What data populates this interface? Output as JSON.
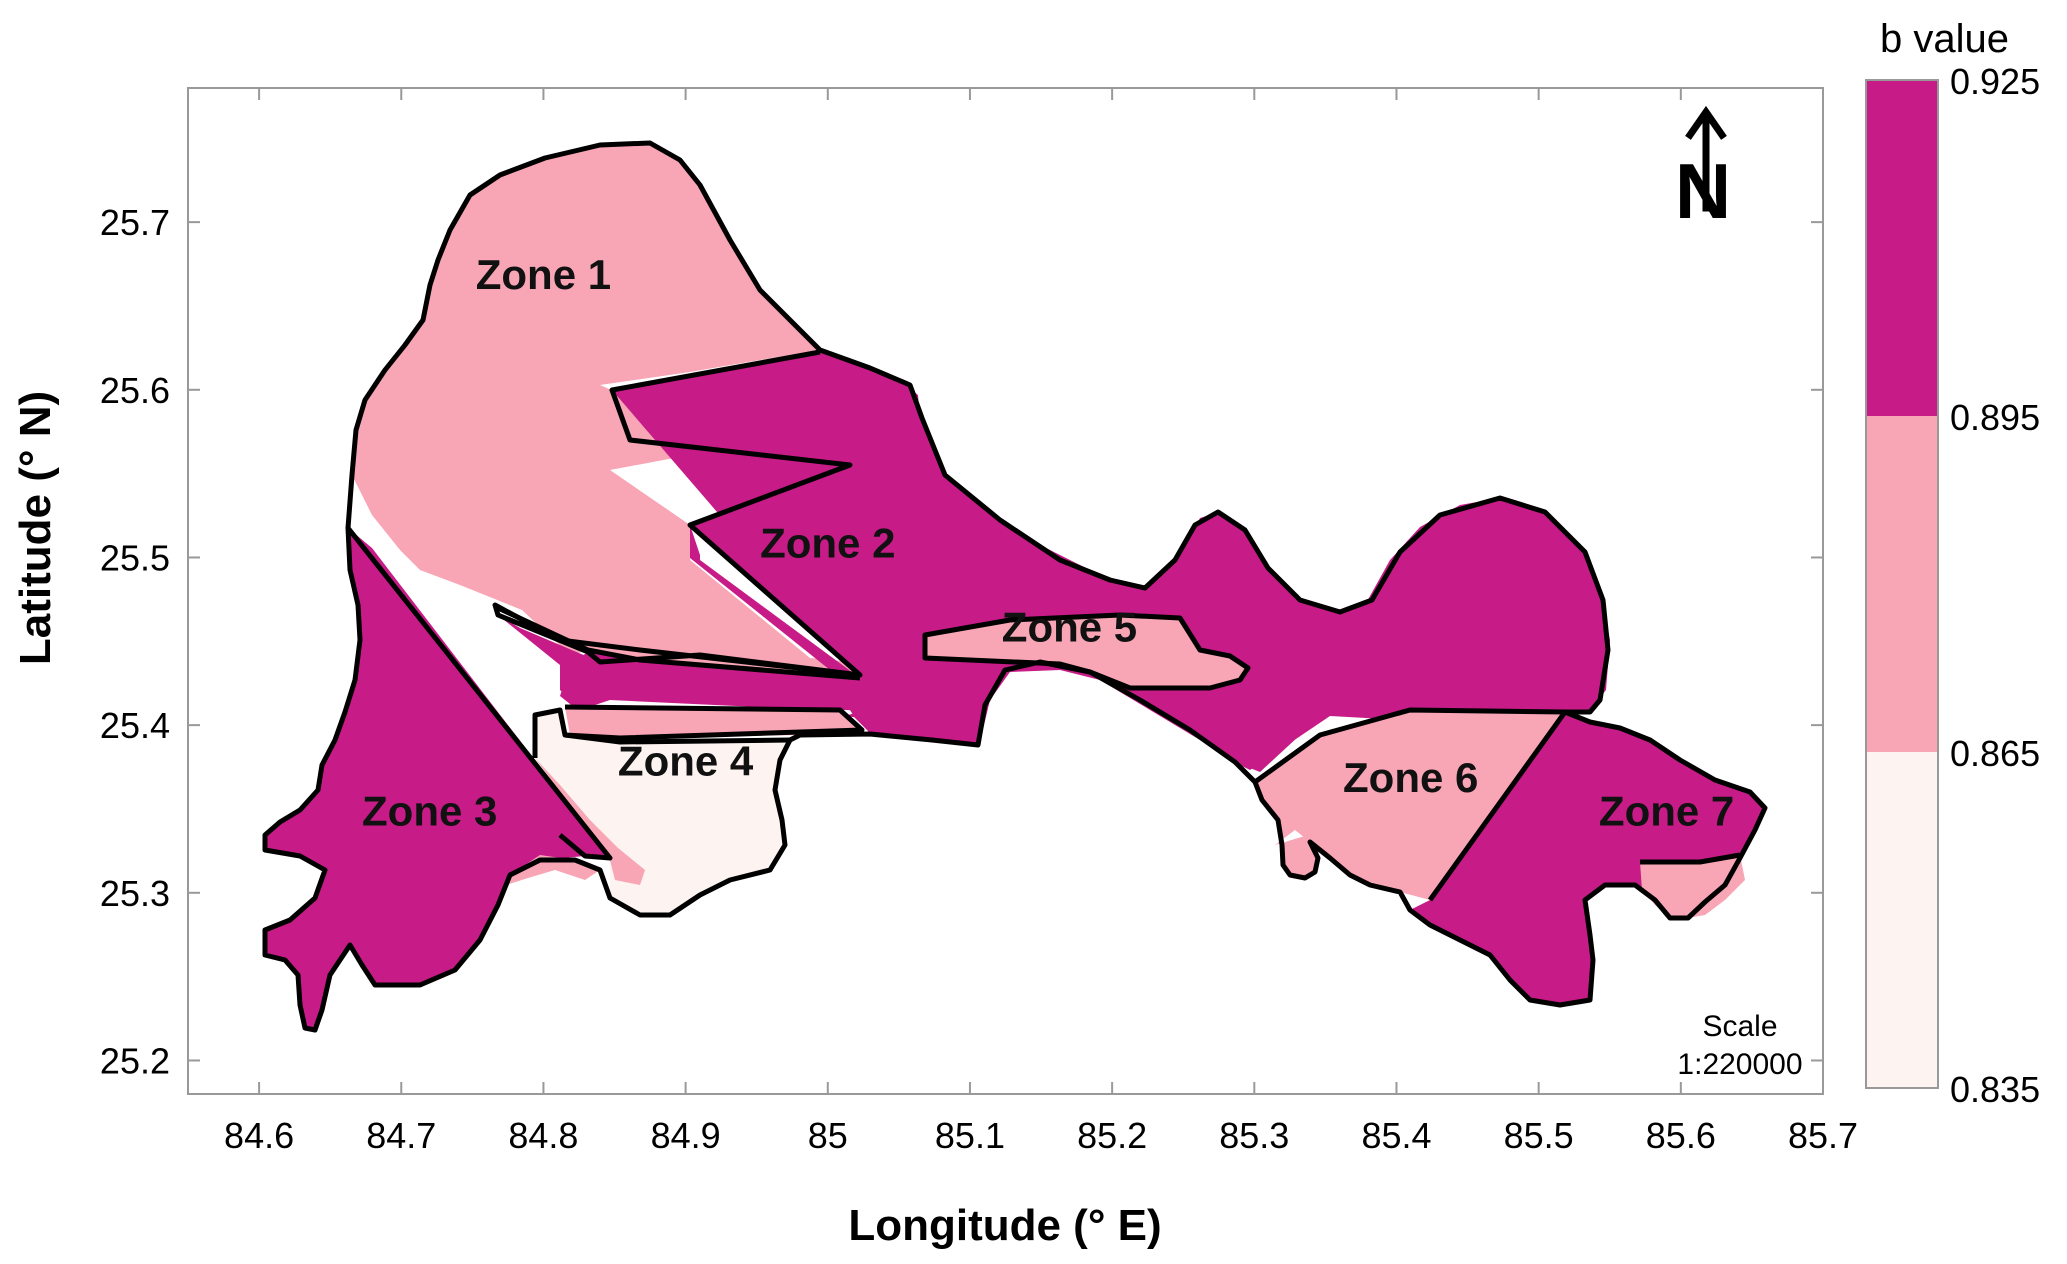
{
  "map": {
    "xlabel": "Longitude (° E)",
    "ylabel": "Latitude (° N)",
    "x_ticks": [
      "84.6",
      "84.7",
      "84.8",
      "84.9",
      "85",
      "85.1",
      "85.2",
      "85.3",
      "85.4",
      "85.5",
      "85.6",
      "85.7"
    ],
    "y_ticks": [
      "25.7",
      "25.6",
      "25.5",
      "25.4",
      "25.3",
      "25.2"
    ],
    "x_range": [
      84.55,
      85.7
    ],
    "y_range": [
      25.18,
      25.78
    ],
    "zones": [
      {
        "label": "Zone 1",
        "level": "mid",
        "lon": 84.8,
        "lat": 25.66
      },
      {
        "label": "Zone 2",
        "level": "high",
        "lon": 85.0,
        "lat": 25.5
      },
      {
        "label": "Zone 3",
        "level": "high",
        "lon": 84.72,
        "lat": 25.34
      },
      {
        "label": "Zone 4",
        "level": "low",
        "lon": 84.9,
        "lat": 25.37
      },
      {
        "label": "Zone 5",
        "level": "mid",
        "lon": 85.17,
        "lat": 25.45
      },
      {
        "label": "Zone 6",
        "level": "mid",
        "lon": 85.41,
        "lat": 25.36
      },
      {
        "label": "Zone 7",
        "level": "high",
        "lon": 85.59,
        "lat": 25.34
      }
    ],
    "north_label": "N",
    "scale_title": "Scale",
    "scale_value": "1:220000"
  },
  "legend": {
    "title": "b  value",
    "ticks": [
      "0.925",
      "0.895",
      "0.865",
      "0.835"
    ],
    "classes": [
      {
        "range": [
          0.895,
          0.925
        ],
        "color": "#C71B87"
      },
      {
        "range": [
          0.865,
          0.895
        ],
        "color": "#F8A6B5"
      },
      {
        "range": [
          0.835,
          0.865
        ],
        "color": "#FDF4F1"
      }
    ]
  },
  "colors": {
    "high": "#C71B87",
    "mid": "#F8A6B5",
    "low": "#FDF4F1",
    "frame": "#999999",
    "outline": "#000000"
  }
}
